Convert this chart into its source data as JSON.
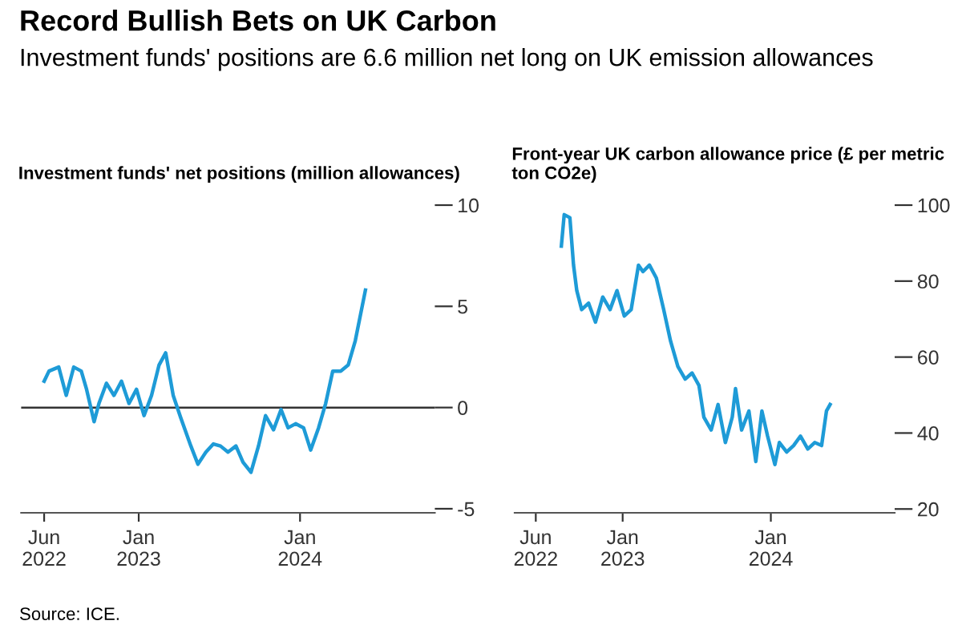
{
  "chart_data": [
    {
      "type": "line",
      "title": "Record Bullish Bets on UK Carbon",
      "subtitle": "Investment funds' positions are 6.6 million net long on UK emission allowances",
      "ylabel": "Investment funds' net positions (million allowances)",
      "annotations": [
        "Source: ICE."
      ],
      "x": [
        "2022-06-01",
        "2022-06-12",
        "2022-07-04",
        "2022-07-21",
        "2022-08-07",
        "2022-08-24",
        "2022-09-05",
        "2022-09-22",
        "2022-10-03",
        "2022-10-20",
        "2022-11-06",
        "2022-11-23",
        "2022-12-10",
        "2022-12-27",
        "2023-01-13",
        "2023-01-30",
        "2023-02-16",
        "2023-03-03",
        "2023-03-20",
        "2023-04-06",
        "2023-04-29",
        "2023-05-15",
        "2023-06-02",
        "2023-06-19",
        "2023-07-05",
        "2023-07-22",
        "2023-08-09",
        "2023-08-25",
        "2023-09-12",
        "2023-09-29",
        "2023-10-15",
        "2023-11-02",
        "2023-11-19",
        "2023-12-05",
        "2023-12-22",
        "2024-01-09",
        "2024-01-25",
        "2024-02-12",
        "2024-02-28",
        "2024-03-15",
        "2024-04-02",
        "2024-04-19",
        "2024-05-05",
        "2024-05-28"
      ],
      "series": [
        {
          "color": "#1e9bd7",
          "values": [
            1.3,
            1.8,
            2.0,
            0.6,
            2.0,
            1.8,
            0.9,
            -0.7,
            0.2,
            1.2,
            0.6,
            1.3,
            0.2,
            0.9,
            -0.4,
            0.6,
            2.1,
            2.7,
            0.6,
            -0.5,
            -1.9,
            -2.8,
            -2.2,
            -1.8,
            -1.9,
            -2.2,
            -1.9,
            -2.7,
            -3.2,
            -1.9,
            -0.4,
            -1.1,
            -0.1,
            -1.0,
            -0.8,
            -1.0,
            -2.1,
            -1.0,
            0.2,
            1.8,
            1.8,
            2.1,
            3.3,
            5.8
          ]
        }
      ],
      "xlim": [
        "2022-04-10",
        "2024-11-01"
      ],
      "ylim": [
        -5.2,
        10
      ],
      "yticks": [
        10,
        5,
        0,
        -5
      ],
      "xticks": [
        {
          "value": "2022-06-01",
          "label": "Jun\n2022"
        },
        {
          "value": "2023-01-01",
          "label": "Jan\n2023"
        },
        {
          "value": "2024-01-01",
          "label": "Jan\n2024"
        }
      ],
      "ref_lines": [
        {
          "axis": "y",
          "value": 0,
          "color": "#333333"
        }
      ],
      "grid": false
    },
    {
      "type": "line",
      "ylabel": "Front-year UK carbon allowance price (£ per metric ton CO2e)",
      "x": [
        "2022-08-03",
        "2022-08-10",
        "2022-08-24",
        "2022-09-02",
        "2022-09-10",
        "2022-09-22",
        "2022-10-09",
        "2022-10-26",
        "2022-11-13",
        "2022-12-01",
        "2022-12-18",
        "2023-01-05",
        "2023-01-22",
        "2023-02-09",
        "2023-02-20",
        "2023-03-08",
        "2023-03-25",
        "2023-04-12",
        "2023-04-29",
        "2023-05-17",
        "2023-06-04",
        "2023-06-21",
        "2023-07-08",
        "2023-07-20",
        "2023-08-07",
        "2023-08-24",
        "2023-09-11",
        "2023-09-28",
        "2023-10-06",
        "2023-10-21",
        "2023-11-08",
        "2023-11-25",
        "2023-12-10",
        "2023-12-24",
        "2024-01-11",
        "2024-01-22",
        "2024-02-09",
        "2024-02-26",
        "2024-03-14",
        "2024-04-01",
        "2024-04-18",
        "2024-05-05",
        "2024-05-17",
        "2024-05-26"
      ],
      "series": [
        {
          "color": "#1e9bd7",
          "values": [
            89.2,
            97.5,
            96.7,
            84.2,
            77.5,
            72.5,
            74.2,
            69.2,
            75.8,
            72.5,
            77.5,
            70.8,
            72.5,
            84.2,
            82.5,
            84.2,
            80.8,
            72.5,
            64.2,
            57.5,
            54.2,
            55.8,
            52.5,
            44.2,
            40.8,
            47.5,
            37.5,
            44.2,
            51.7,
            40.8,
            45.8,
            32.5,
            45.8,
            39.2,
            31.7,
            37.5,
            35.0,
            36.7,
            39.2,
            35.8,
            37.5,
            36.7,
            45.8,
            47.5
          ]
        }
      ],
      "xlim": [
        "2022-04-10",
        "2024-11-01"
      ],
      "ylim": [
        19,
        100
      ],
      "yticks": [
        100,
        80,
        60,
        40,
        20
      ],
      "xticks": [
        {
          "value": "2022-06-01",
          "label": "Jun\n2022"
        },
        {
          "value": "2023-01-01",
          "label": "Jan\n2023"
        },
        {
          "value": "2024-01-01",
          "label": "Jan\n2024"
        }
      ],
      "grid": false
    }
  ]
}
